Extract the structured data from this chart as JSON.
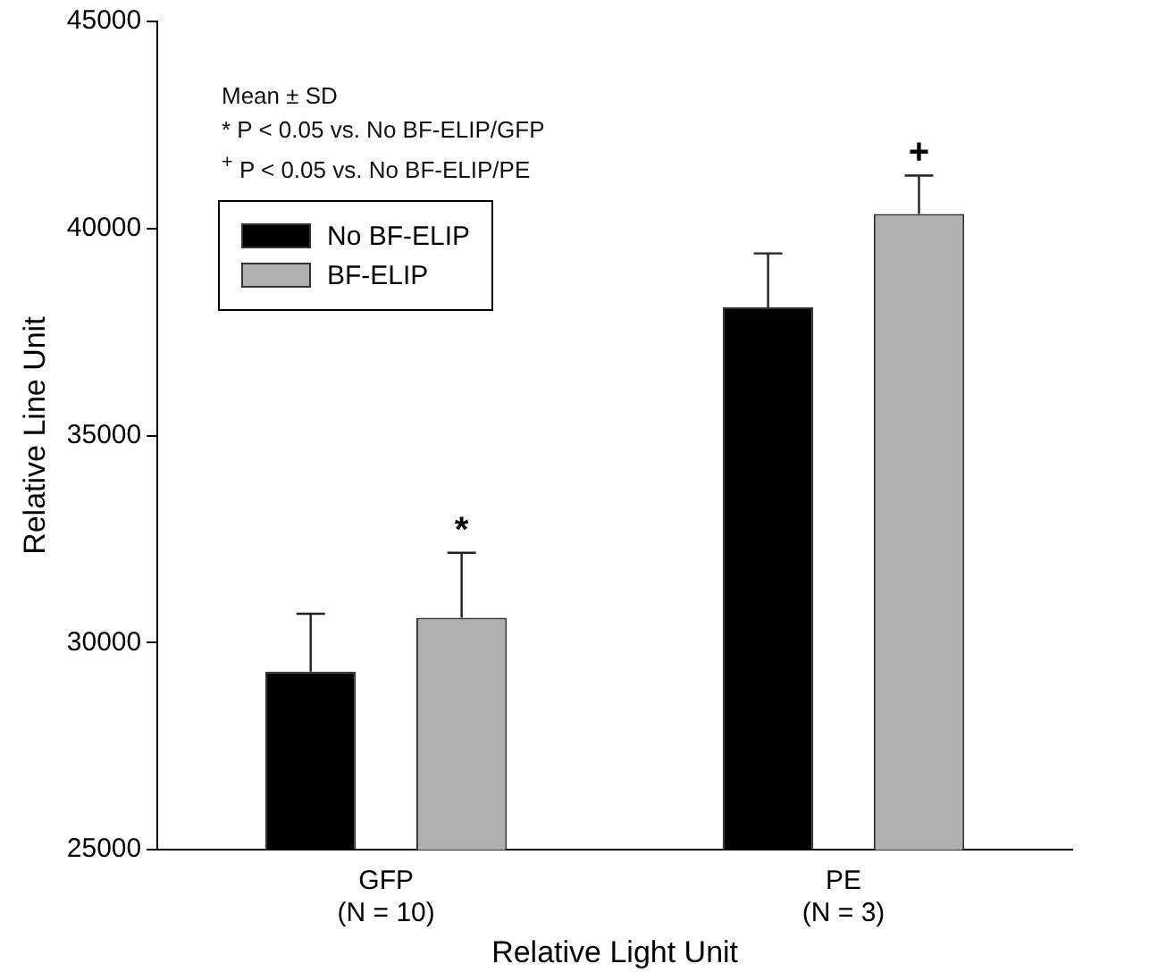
{
  "chart_data": {
    "type": "bar",
    "xlabel": "Relative Light Unit",
    "ylabel": "Relative Line Unit",
    "categories": [
      "GFP\n(N = 10)",
      "PE\n(N = 3)"
    ],
    "series": [
      {
        "name": "No BF-ELIP",
        "color": "#000000",
        "values": [
          29300,
          38100
        ],
        "errors": [
          [
            29300,
            30700
          ],
          [
            38100,
            39400
          ]
        ]
      },
      {
        "name": "BF-ELIP",
        "color": "#b0b0b0",
        "values": [
          30600,
          40350
        ],
        "errors": [
          [
            30600,
            32170
          ],
          [
            40350,
            41280
          ]
        ]
      }
    ],
    "ylim": [
      25000,
      45000
    ],
    "yticks": [
      25000,
      30000,
      35000,
      40000,
      45000
    ],
    "grid": false,
    "legend": "top left",
    "annotations": [
      "Mean ± SD",
      "* P < 0.05 vs. No BF-ELIP/GFP",
      "$^{+}$ P < 0.05 vs. No BF-ELIP/PE",
      "*",
      "+"
    ]
  }
}
